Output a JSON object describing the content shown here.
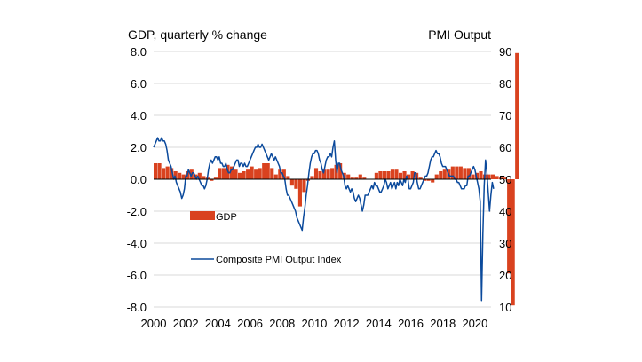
{
  "chart_data": {
    "type": "bar+line",
    "left_axis_title": "GDP, quarterly % change",
    "right_axis_title": "PMI Output",
    "left_ylim": [
      -8.0,
      8.0
    ],
    "left_ticks": [
      "8.0",
      "6.0",
      "4.0",
      "2.0",
      "0.0",
      "-2.0",
      "-4.0",
      "-6.0",
      "-8.0"
    ],
    "right_ylim": [
      10,
      90
    ],
    "right_ticks": [
      "90",
      "80",
      "70",
      "60",
      "50",
      "40",
      "30",
      "20",
      "10"
    ],
    "x_ticks": [
      "2000",
      "2002",
      "2004",
      "2006",
      "2008",
      "2010",
      "2012",
      "2014",
      "2016",
      "2018",
      "2020"
    ],
    "x_range": [
      2000.0,
      2021.0
    ],
    "gdp_color": "#d9421f",
    "pmi_color": "#0b4a9c",
    "legend": {
      "gdp": "GDP",
      "pmi": "Composite PMI Output Index"
    },
    "gdp": {
      "name": "GDP",
      "start": 2000.0,
      "step": 0.25,
      "values": [
        1.0,
        1.0,
        0.7,
        0.8,
        0.7,
        0.5,
        0.4,
        0.3,
        0.5,
        0.6,
        0.3,
        0.4,
        0.2,
        0.1,
        -0.1,
        0.1,
        0.7,
        0.7,
        0.9,
        0.8,
        0.6,
        0.4,
        0.5,
        0.6,
        0.8,
        0.6,
        0.7,
        1.0,
        1.0,
        0.7,
        0.3,
        0.6,
        0.6,
        0.2,
        -0.4,
        -0.6,
        -1.7,
        -0.8,
        -0.1,
        0.2,
        0.7,
        0.5,
        0.6,
        0.6,
        0.7,
        0.9,
        1.0,
        0.4,
        0.3,
        0.1,
        0.1,
        0.3,
        0.1,
        0.0,
        0.0,
        0.4,
        0.5,
        0.5,
        0.5,
        0.6,
        0.6,
        0.4,
        0.5,
        0.3,
        0.5,
        0.4,
        0.1,
        -0.1,
        -0.1,
        -0.2,
        0.3,
        0.5,
        0.6,
        0.6,
        0.8,
        0.8,
        0.8,
        0.7,
        0.7,
        0.3,
        0.4,
        0.5,
        0.3,
        0.3,
        0.3,
        0.2,
        0.1,
        0.1,
        -5.9,
        -7.9,
        7.9
      ]
    },
    "pmi": {
      "name": "Composite PMI Output Index",
      "start": 2000.0,
      "step": 0.0833,
      "values": [
        60,
        61,
        62,
        63,
        62,
        62,
        63,
        62,
        62,
        61,
        59,
        56,
        55,
        54,
        52,
        50,
        51,
        49,
        48,
        47,
        46,
        44,
        45,
        47,
        51,
        51,
        53,
        52,
        51,
        52,
        52,
        51,
        50,
        51,
        50,
        49,
        48,
        48,
        47,
        48,
        50,
        53,
        55,
        56,
        55,
        56,
        57,
        57,
        56,
        57,
        55,
        55,
        54,
        54,
        55,
        53,
        52,
        52,
        53,
        53,
        54,
        55,
        56,
        56,
        54,
        55,
        55,
        54,
        55,
        54,
        54,
        55,
        56,
        57,
        58,
        59,
        60,
        60,
        61,
        60,
        60,
        61,
        60,
        59,
        58,
        57,
        56,
        57,
        58,
        57,
        56,
        57,
        56,
        55,
        54,
        52,
        52,
        51,
        50,
        47,
        45,
        45,
        44,
        43,
        42,
        41,
        40,
        38,
        37,
        36,
        35,
        34,
        38,
        41,
        45,
        48,
        52,
        55,
        57,
        58,
        58,
        59,
        59,
        58,
        56,
        55,
        53,
        52,
        54,
        56,
        57,
        57,
        58,
        57,
        60,
        62,
        56,
        52,
        55,
        55,
        53,
        52,
        51,
        48,
        47,
        48,
        47,
        46,
        47,
        46,
        44,
        43,
        44,
        45,
        44,
        42,
        40,
        42,
        45,
        45,
        45,
        46,
        47,
        48,
        47,
        49,
        48,
        48,
        47,
        46,
        46,
        47,
        48,
        50,
        49,
        47,
        48,
        49,
        47,
        48,
        49,
        47,
        49,
        48,
        50,
        49,
        48,
        50,
        49,
        51,
        50,
        47,
        47,
        48,
        49,
        52,
        52,
        49,
        47,
        47,
        48,
        49,
        50,
        51,
        51,
        52,
        54,
        56,
        57,
        57,
        58,
        59,
        58,
        58,
        57,
        55,
        54,
        54,
        54,
        53,
        52,
        51,
        51,
        51,
        51,
        50,
        50,
        49,
        49,
        48,
        47,
        47,
        47,
        48,
        48,
        51,
        51,
        52,
        53,
        54,
        53,
        51,
        49,
        47,
        43,
        12,
        33,
        48,
        56,
        52,
        46,
        40,
        45,
        49,
        47
      ]
    }
  }
}
